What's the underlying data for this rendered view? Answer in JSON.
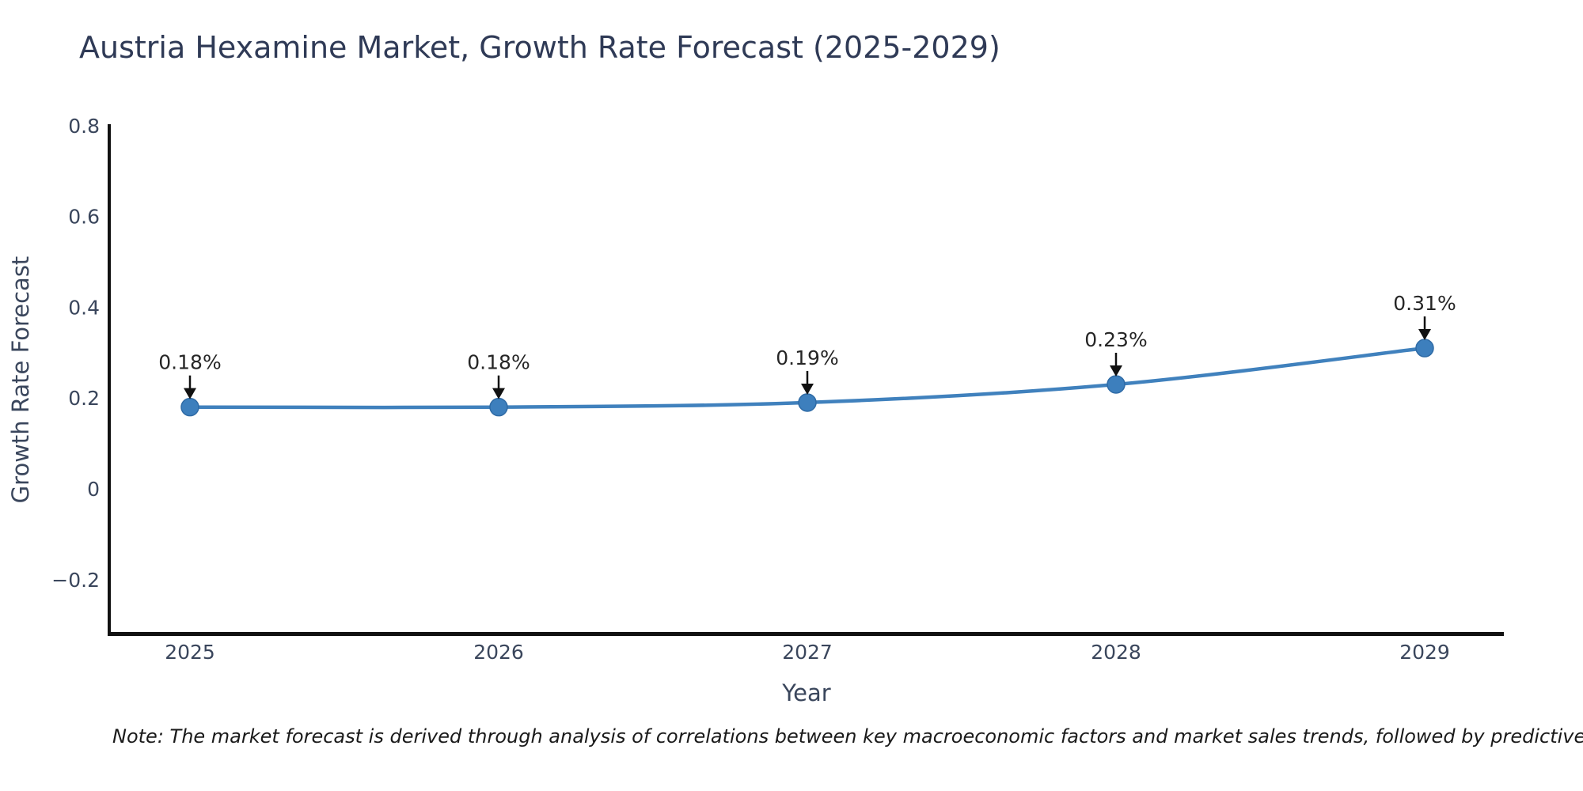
{
  "chart_data": {
    "type": "line",
    "title": "Austria Hexamine Market, Growth Rate Forecast (2025-2029)",
    "xlabel": "Year",
    "ylabel": "Growth Rate Forecast",
    "categories": [
      "2025",
      "2026",
      "2027",
      "2028",
      "2029"
    ],
    "series": [
      {
        "name": "Growth Rate Forecast",
        "values": [
          0.18,
          0.18,
          0.19,
          0.23,
          0.31
        ]
      }
    ],
    "point_labels": [
      "0.18%",
      "0.18%",
      "0.19%",
      "0.23%",
      "0.31%"
    ],
    "ytick_values": [
      0.8,
      0.6,
      0.4,
      0.2,
      0,
      -0.2
    ],
    "ytick_labels": [
      "0.8",
      "0.6",
      "0.4",
      "0.2",
      "0",
      "−0.2"
    ],
    "ylim": [
      -0.32,
      0.8
    ],
    "grid": false,
    "legend": "none",
    "colors": {
      "line": "#4081bd",
      "marker_fill": "#3d7fbd",
      "marker_edge": "#2f6ba6",
      "axis": "#111111",
      "tick_text": "#3a465c",
      "title_text": "#2f3a56",
      "annotation_text": "#262626",
      "arrow": "#111111",
      "note_text": "#1a1a1a"
    }
  },
  "footnote": "Note: The market forecast is derived through analysis of correlations between key macroeconomic factors and market sales trends, followed by predictive modeling to project future sa"
}
